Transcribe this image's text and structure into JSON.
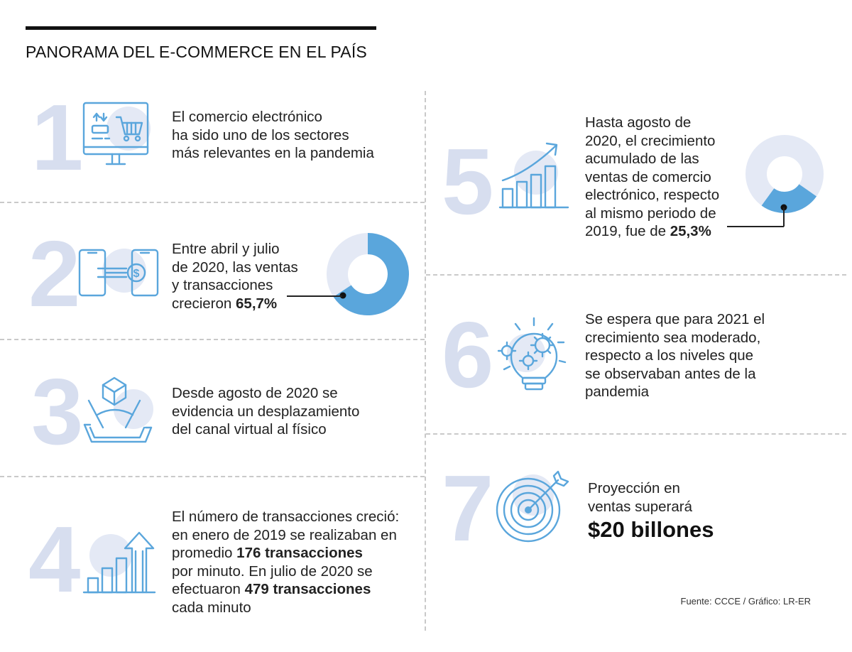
{
  "title": "PANORAMA DEL E-COMMERCE EN EL PAÍS",
  "colors": {
    "accent": "#5aa6dc",
    "light_ring": "#e4e9f5",
    "numeral": "#d7deef"
  },
  "items": [
    {
      "number": "1",
      "icon": "monitor-shopping-cart-icon",
      "lines": [
        "El comercio electrónico",
        "ha sido uno de los sectores",
        "más relevantes en la pandemia"
      ]
    },
    {
      "number": "2",
      "icon": "phone-money-transfer-icon",
      "lines": [
        "Entre abril y julio",
        "de 2020, las ventas",
        "y transacciones"
      ],
      "pre": "crecieron ",
      "highlight": "65,7%",
      "donut_percent": 65.7
    },
    {
      "number": "3",
      "icon": "box-on-tablet-icon",
      "lines": [
        "Desde agosto de 2020 se",
        "evidencia un desplazamiento",
        "del canal virtual al físico"
      ]
    },
    {
      "number": "4",
      "icon": "growth-bars-arrow-icon",
      "l1": "El número de transacciones creció:",
      "l2": "en enero de 2019 se realizaban en",
      "l3_pre": "promedio ",
      "l3_bold": "176 transacciones",
      "l4": "por minuto. En julio de 2020 se",
      "l5_pre": "efectuaron ",
      "l5_bold": "479 transacciones",
      "l6": "cada minuto"
    },
    {
      "number": "5",
      "icon": "growth-chart-icon",
      "lines": [
        "Hasta agosto de",
        "2020, el crecimiento",
        "acumulado de las",
        "ventas de comercio",
        "electrónico, respecto",
        "al mismo periodo de"
      ],
      "pre": "2019, fue de ",
      "highlight": "25,3%",
      "donut_percent": 25.3
    },
    {
      "number": "6",
      "icon": "lightbulb-gears-icon",
      "lines": [
        "Se espera que para 2021 el",
        "crecimiento sea moderado,",
        "respecto a los niveles que",
        "se observaban antes de la",
        "pandemia"
      ]
    },
    {
      "number": "7",
      "icon": "target-arrow-icon",
      "lines": [
        "Proyección en",
        "ventas superará"
      ],
      "highlight": "$20 billones"
    }
  ],
  "source": "Fuente: CCCE  / Gráfico: LR-ER"
}
